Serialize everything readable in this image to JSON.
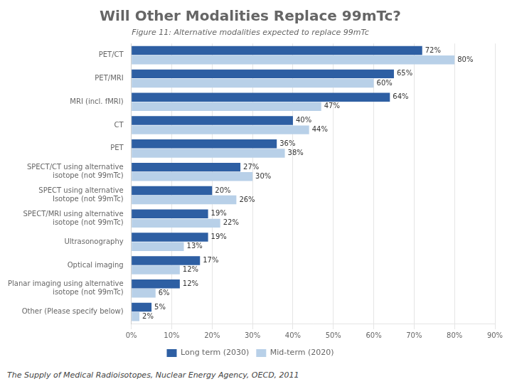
{
  "chart_data": {
    "type": "bar",
    "orientation": "horizontal",
    "title": "Will Other Modalities Replace 99mTc?",
    "subtitle": "Figure 11: Alternative modalities expected to replace 99mTc",
    "annotations": [
      "The Supply of Medical Radioisotopes, Nuclear Energy Agency, OECD, 2011"
    ],
    "categories": [
      "PET/CT",
      "PET/MRI",
      "MRI (incl. fMRI)",
      "CT",
      "PET",
      "SPECT/CT using alternative\nisotope (not 99mTc)",
      "SPECT using alternative\nIsotope (not 99mTc)",
      "SPECT/MRI using alternative\nisotope (not 99mTc)",
      "Ultrasonography",
      "Optical imaging",
      "Planar imaging using alternative\nisotope (not 99mTc)",
      "Other (Please specify below)"
    ],
    "series": [
      {
        "name": "Long term (2030)",
        "color": "#2E5FA3",
        "values": [
          72,
          65,
          64,
          40,
          36,
          27,
          20,
          19,
          19,
          17,
          12,
          5
        ],
        "value_labels": [
          "72%",
          "65%",
          "64%",
          "40%",
          "36%",
          "27%",
          "20%",
          "19%",
          "19%",
          "17%",
          "12%",
          "5%"
        ]
      },
      {
        "name": "Mid-term (2020)",
        "color": "#B8D0E8",
        "values": [
          80,
          60,
          47,
          44,
          38,
          30,
          26,
          22,
          13,
          12,
          6,
          2
        ],
        "value_labels": [
          "80%",
          "60%",
          "47%",
          "44%",
          "38%",
          "30%",
          "26%",
          "22%",
          "13%",
          "12%",
          "6%",
          "2%"
        ]
      }
    ],
    "xlim": [
      0,
      90
    ],
    "xticks": [
      {
        "value": 0,
        "label": "0%"
      },
      {
        "value": 10,
        "label": "10%"
      },
      {
        "value": 20,
        "label": "20%"
      },
      {
        "value": 30,
        "label": "30%"
      },
      {
        "value": 40,
        "label": "40%"
      },
      {
        "value": 50,
        "label": "50%"
      },
      {
        "value": 60,
        "label": "60%"
      },
      {
        "value": 70,
        "label": "70%"
      },
      {
        "value": 80,
        "label": "80%"
      },
      {
        "value": 90,
        "label": "90%"
      }
    ],
    "grid": true,
    "legend": "bottom",
    "data_labels": true
  }
}
